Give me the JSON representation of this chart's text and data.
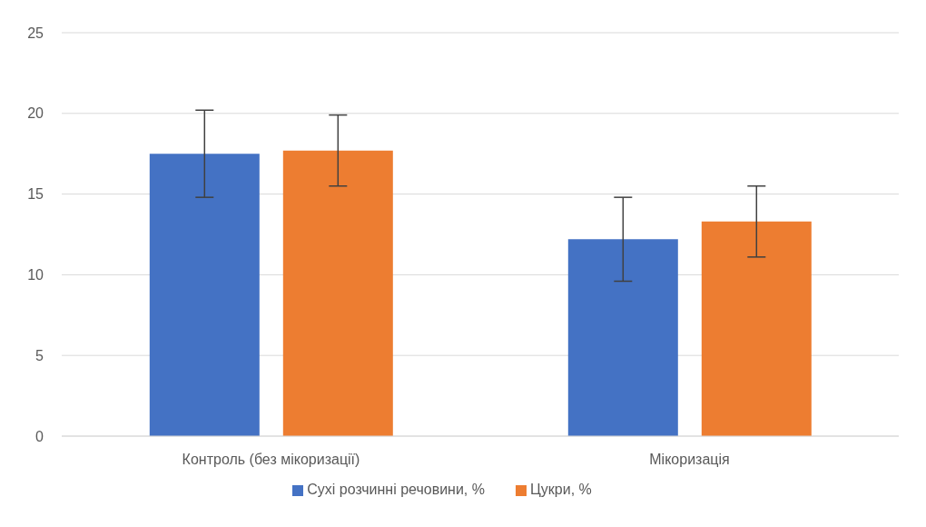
{
  "chart_data": {
    "type": "bar",
    "categories": [
      "Контроль (без мікоризації)",
      "Мікоризація"
    ],
    "series": [
      {
        "name": "Сухі розчинні речовини, %",
        "color": "#4472c4",
        "values": [
          17.5,
          12.2
        ],
        "errors": [
          2.7,
          2.6
        ]
      },
      {
        "name": "Цукри, %",
        "color": "#ed7d31",
        "values": [
          17.7,
          13.3
        ],
        "errors": [
          2.2,
          2.2
        ]
      }
    ],
    "ylim": [
      0,
      25
    ],
    "yticks": [
      0,
      5,
      10,
      15,
      20,
      25
    ],
    "grid": "y",
    "legend": "bottom"
  }
}
